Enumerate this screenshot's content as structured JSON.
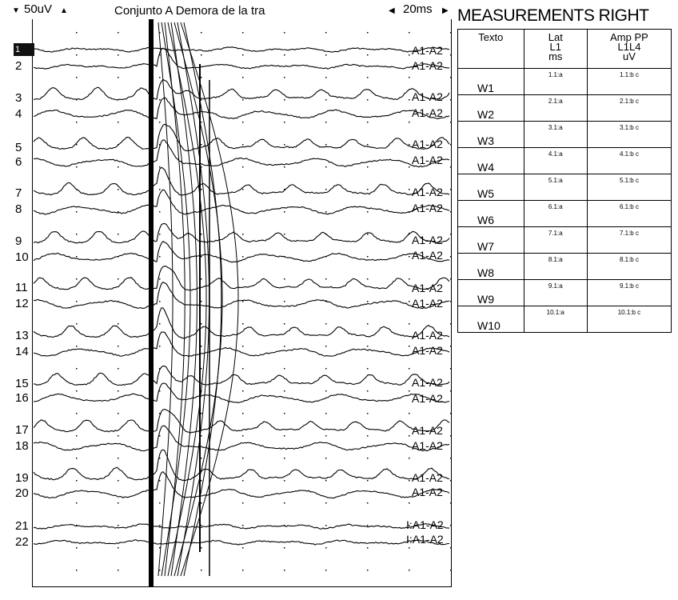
{
  "toolbar": {
    "down_arrow": "▼",
    "sensitivity": "50uV",
    "up_arrow": "▲",
    "title": "Conjunto A Demora de la tra",
    "left_arrow": "◀",
    "timebase": "20ms",
    "right_arrow": "▶"
  },
  "channels": [
    "1",
    "2",
    "3",
    "4",
    "5",
    "6",
    "7",
    "8",
    "9",
    "10",
    "11",
    "12",
    "13",
    "14",
    "15",
    "16",
    "17",
    "18",
    "19",
    "20",
    "21",
    "22"
  ],
  "derivations": {
    "a1a2": "A1-A2",
    "inv": "I:A1-A2"
  },
  "measurements": {
    "title": "MEASUREMENTS RIGHT",
    "headers": [
      {
        "l1": "Texto",
        "l2": "",
        "l3": "",
        "l4": ""
      },
      {
        "l1": "Lat",
        "l2": "L1",
        "l3": "ms",
        "l4": ""
      },
      {
        "l1": "Amp PP",
        "l2": "L1L4",
        "l3": "uV",
        "l4": ""
      }
    ],
    "rows": [
      {
        "label": "W1",
        "lat": "1.1:a",
        "amp": "1.1:b c"
      },
      {
        "label": "W2",
        "lat": "2.1:a",
        "amp": "2.1:b c"
      },
      {
        "label": "W3",
        "lat": "3.1:a",
        "amp": "3.1:b c"
      },
      {
        "label": "W4",
        "lat": "4.1:a",
        "amp": "4.1:b c"
      },
      {
        "label": "W5",
        "lat": "5.1:a",
        "amp": "5.1:b c"
      },
      {
        "label": "W6",
        "lat": "6.1:a",
        "amp": "6.1:b c"
      },
      {
        "label": "W7",
        "lat": "7.1:a",
        "amp": "7.1:b c"
      },
      {
        "label": "W8",
        "lat": "8.1:a",
        "amp": "8.1:b c"
      },
      {
        "label": "W9",
        "lat": "9.1:a",
        "amp": "9.1:b c"
      },
      {
        "label": "W10",
        "lat": "10.1:a",
        "amp": "10.1:b c"
      }
    ]
  }
}
